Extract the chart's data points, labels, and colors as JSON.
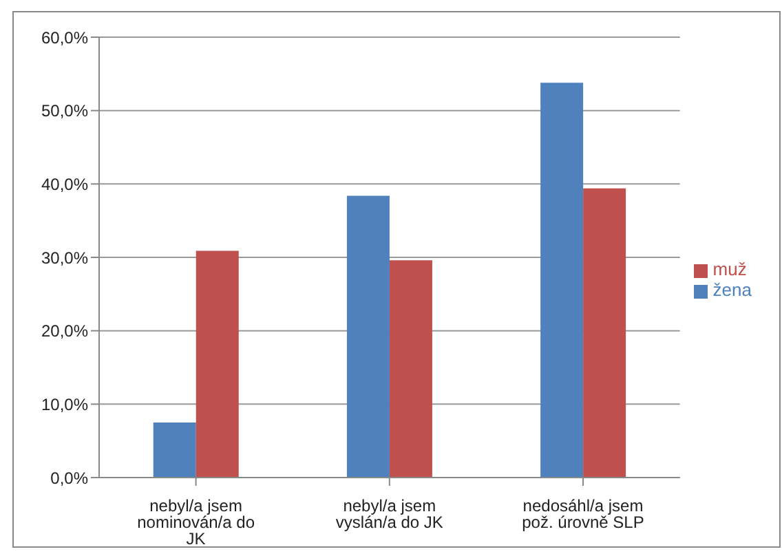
{
  "chart_data": {
    "type": "bar",
    "categories": [
      "nebyl/a jsem nominován/a do JK",
      "nebyl/a jsem vyslán/a do JK",
      "nedosáhl/a jsem pož. úrovně SLP"
    ],
    "series": [
      {
        "name": "žena",
        "color": "#4f81bd",
        "values": [
          7.5,
          38.4,
          53.8
        ]
      },
      {
        "name": "muž",
        "color": "#c0504d",
        "values": [
          30.9,
          29.6,
          39.4
        ]
      }
    ],
    "ylim": [
      0,
      60
    ],
    "yticks": [
      {
        "value": 0,
        "label": "0,0%"
      },
      {
        "value": 10,
        "label": "10,0%"
      },
      {
        "value": 20,
        "label": "20,0%"
      },
      {
        "value": 30,
        "label": "30,0%"
      },
      {
        "value": 40,
        "label": "40,0%"
      },
      {
        "value": 50,
        "label": "50,0%"
      },
      {
        "value": 60,
        "label": "60,0%"
      }
    ],
    "grid": "y",
    "legend": "right"
  }
}
